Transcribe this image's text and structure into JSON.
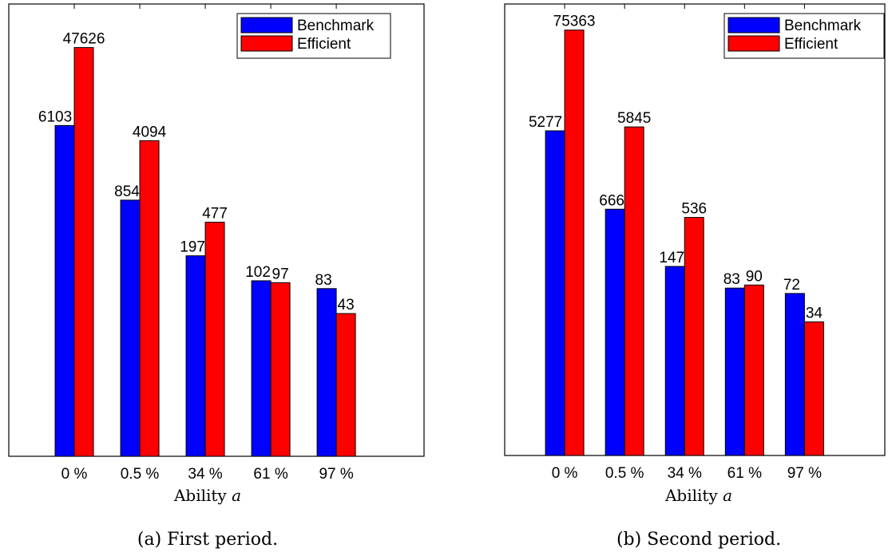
{
  "colors": {
    "Benchmark": "#0000ff",
    "Efficient": "#ff0000",
    "axes": "#000000",
    "background": "#ffffff"
  },
  "chart_data": [
    {
      "type": "bar",
      "scale": "log",
      "categories": [
        "0 %",
        "0.5 %",
        "34 %",
        "61 %",
        "97 %"
      ],
      "series": [
        {
          "name": "Benchmark",
          "values": [
            6103,
            854,
            197,
            102,
            83
          ]
        },
        {
          "name": "Efficient",
          "values": [
            47626,
            4094,
            477,
            97,
            43
          ]
        }
      ],
      "xlabel_text": "Ability ",
      "xlabel_var": "a",
      "caption": "(a) First period.",
      "legend_position": "top-right",
      "grid": false,
      "ylim": [
        1,
        150000
      ]
    },
    {
      "type": "bar",
      "scale": "log",
      "categories": [
        "0 %",
        "0.5 %",
        "34 %",
        "61 %",
        "97 %"
      ],
      "series": [
        {
          "name": "Benchmark",
          "values": [
            5277,
            666,
            147,
            83,
            72
          ]
        },
        {
          "name": "Efficient",
          "values": [
            75363,
            5845,
            536,
            90,
            34
          ]
        }
      ],
      "xlabel_text": "Ability ",
      "xlabel_var": "a",
      "caption": "(b) Second period.",
      "legend_position": "top-right",
      "grid": false,
      "ylim": [
        1,
        150000
      ]
    }
  ]
}
